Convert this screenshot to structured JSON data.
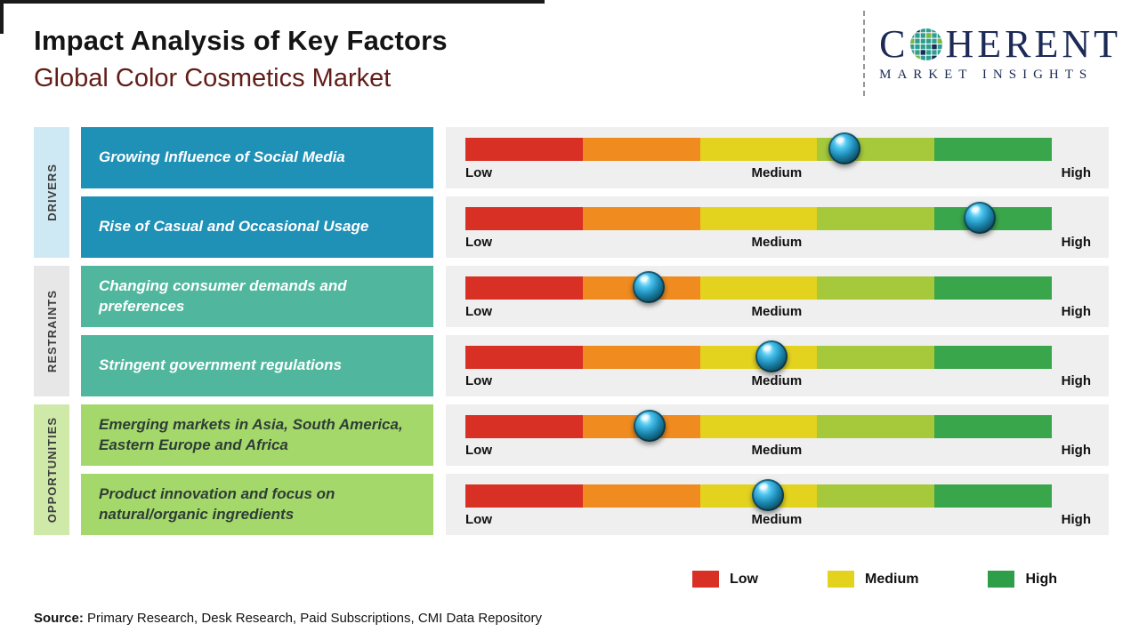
{
  "header": {
    "title": "Impact Analysis of Key Factors",
    "subtitle": "Global Color Cosmetics Market"
  },
  "logo": {
    "line1_pre": "C",
    "line1_post": "HERENT",
    "line2": "MARKET INSIGHTS",
    "brand_color": "#1b2a56"
  },
  "scale": {
    "low": "Low",
    "medium": "Medium",
    "high": "High"
  },
  "bar": {
    "segment_colors": [
      "#d93025",
      "#ef8b1f",
      "#e3d31f",
      "#a6c93b",
      "#3aa64b"
    ]
  },
  "groups": [
    {
      "label": "DRIVERS",
      "cat_bg": "#cfe9f4",
      "box_bg": "#1f90b6",
      "text_color": "#ffffff",
      "rows": [
        {
          "text": "Growing Influence of Social Media",
          "marker": 0.647
        },
        {
          "text": "Rise of Casual and Occasional Usage",
          "marker": 0.877
        }
      ]
    },
    {
      "label": "RESTRAINTS",
      "cat_bg": "#e7e7e7",
      "box_bg": "#50b79e",
      "text_color": "#ffffff",
      "rows": [
        {
          "text": "Changing consumer demands and preferences",
          "marker": 0.313
        },
        {
          "text": "Stringent government regulations",
          "marker": 0.522
        }
      ]
    },
    {
      "label": "OPPORTUNITIES",
      "cat_bg": "#cfe9a9",
      "box_bg": "#a5d86b",
      "text_color": "#2e3d36",
      "rows": [
        {
          "text": "Emerging markets in Asia, South America, Eastern Europe and Africa",
          "marker": 0.314
        },
        {
          "text": "Product innovation and focus on natural/organic ingredients",
          "marker": 0.516
        }
      ]
    }
  ],
  "legend": [
    {
      "label": "Low",
      "color": "#d93025"
    },
    {
      "label": "Medium",
      "color": "#e3d31f"
    },
    {
      "label": "High",
      "color": "#2f9e48"
    }
  ],
  "source": {
    "label": "Source:",
    "text": " Primary Research, Desk Research, Paid Subscriptions, CMI Data Repository"
  },
  "chart_data": {
    "type": "bar",
    "title": "Impact Analysis of Key Factors",
    "subtitle": "Global Color Cosmetics Market",
    "scale_labels": [
      "Low",
      "Medium",
      "High"
    ],
    "axis_range_0_to_1": [
      0,
      1
    ],
    "legend": [
      "Low",
      "Medium",
      "High"
    ],
    "series": [
      {
        "group": "Drivers",
        "factor": "Growing Influence of Social Media",
        "impact_position": 0.647,
        "impact": "Medium-High"
      },
      {
        "group": "Drivers",
        "factor": "Rise of Casual and Occasional Usage",
        "impact_position": 0.877,
        "impact": "High"
      },
      {
        "group": "Restraints",
        "factor": "Changing consumer demands and preferences",
        "impact_position": 0.313,
        "impact": "Low-Medium"
      },
      {
        "group": "Restraints",
        "factor": "Stringent government regulations",
        "impact_position": 0.522,
        "impact": "Medium"
      },
      {
        "group": "Opportunities",
        "factor": "Emerging markets in Asia, South America, Eastern Europe and Africa",
        "impact_position": 0.314,
        "impact": "Low-Medium"
      },
      {
        "group": "Opportunities",
        "factor": "Product innovation and focus on natural/organic ingredients",
        "impact_position": 0.516,
        "impact": "Medium"
      }
    ]
  }
}
